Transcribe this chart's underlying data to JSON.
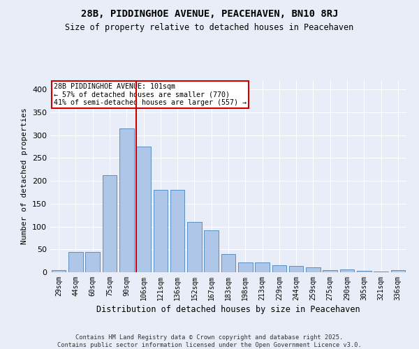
{
  "title1": "28B, PIDDINGHOE AVENUE, PEACEHAVEN, BN10 8RJ",
  "title2": "Size of property relative to detached houses in Peacehaven",
  "xlabel": "Distribution of detached houses by size in Peacehaven",
  "ylabel": "Number of detached properties",
  "categories": [
    "29sqm",
    "44sqm",
    "60sqm",
    "75sqm",
    "90sqm",
    "106sqm",
    "121sqm",
    "136sqm",
    "152sqm",
    "167sqm",
    "183sqm",
    "198sqm",
    "213sqm",
    "229sqm",
    "244sqm",
    "259sqm",
    "275sqm",
    "290sqm",
    "305sqm",
    "321sqm",
    "336sqm"
  ],
  "values": [
    5,
    44,
    44,
    212,
    315,
    275,
    180,
    180,
    110,
    92,
    40,
    22,
    22,
    15,
    13,
    10,
    5,
    6,
    3,
    2,
    4
  ],
  "bar_color": "#aec6e8",
  "bar_edge_color": "#5a8fc2",
  "vline_index": 5,
  "vline_color": "#cc0000",
  "annotation_text": "28B PIDDINGHOE AVENUE: 101sqm\n← 57% of detached houses are smaller (770)\n41% of semi-detached houses are larger (557) →",
  "annotation_box_color": "#ffffff",
  "annotation_box_edge": "#cc0000",
  "ylim": [
    0,
    420
  ],
  "background_color": "#e8edf7",
  "plot_bg_color": "#e8edf7",
  "footer_line1": "Contains HM Land Registry data © Crown copyright and database right 2025.",
  "footer_line2": "Contains public sector information licensed under the Open Government Licence v3.0.",
  "grid_color": "#ffffff",
  "yticks": [
    0,
    50,
    100,
    150,
    200,
    250,
    300,
    350,
    400
  ]
}
